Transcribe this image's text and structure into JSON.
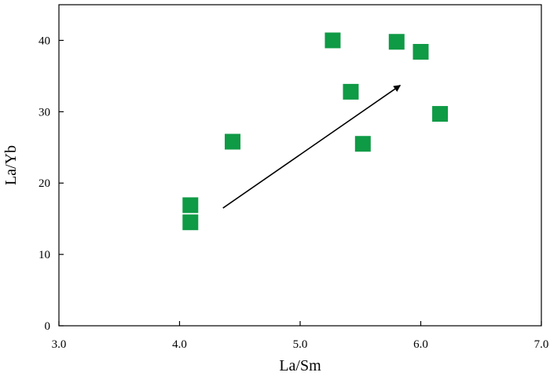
{
  "chart_data": {
    "type": "scatter",
    "xlabel": "La/Sm",
    "ylabel": "La/Yb",
    "xlim": [
      3.0,
      7.0
    ],
    "ylim": [
      0,
      45
    ],
    "xticks": [
      3.0,
      4.0,
      5.0,
      6.0,
      7.0
    ],
    "xtick_labels": [
      "3.0",
      "4.0",
      "5.0",
      "6.0",
      "7.0"
    ],
    "yticks": [
      0,
      10,
      20,
      30,
      40
    ],
    "ytick_labels": [
      "0",
      "10",
      "20",
      "30",
      "40"
    ],
    "grid": false,
    "marker": "square",
    "marker_color": "#0f9a45",
    "points": [
      {
        "x": 4.09,
        "y": 16.9
      },
      {
        "x": 4.09,
        "y": 14.5
      },
      {
        "x": 4.44,
        "y": 25.8
      },
      {
        "x": 5.27,
        "y": 40.0
      },
      {
        "x": 5.42,
        "y": 32.8
      },
      {
        "x": 5.52,
        "y": 25.5
      },
      {
        "x": 5.8,
        "y": 39.8
      },
      {
        "x": 6.0,
        "y": 38.4
      },
      {
        "x": 6.16,
        "y": 29.7
      }
    ],
    "annotations": [
      {
        "type": "arrow",
        "from": {
          "x": 4.36,
          "y": 16.5
        },
        "to": {
          "x": 5.83,
          "y": 33.7
        }
      }
    ]
  }
}
